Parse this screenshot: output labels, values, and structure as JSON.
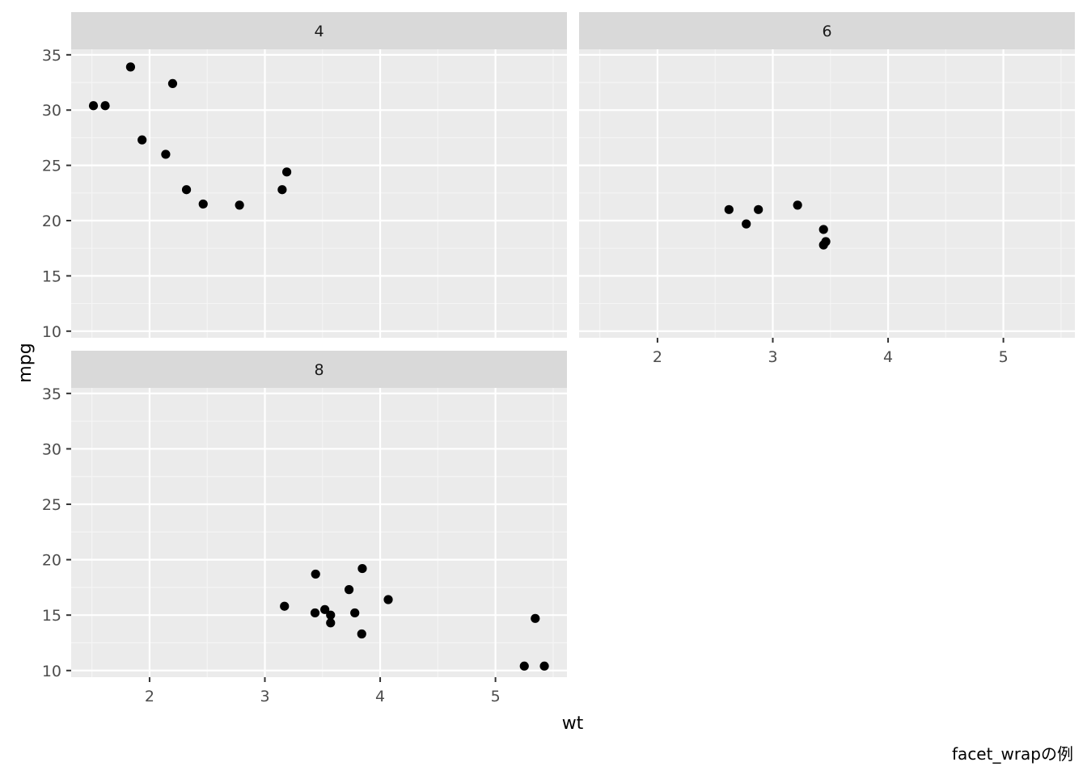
{
  "chart_data": {
    "type": "scatter",
    "xlabel": "wt",
    "ylabel": "mpg",
    "caption": "facet_wrapの例",
    "xlim": [
      1.32,
      5.62
    ],
    "ylim": [
      9.4,
      35.5
    ],
    "x_ticks": [
      2,
      3,
      4,
      5
    ],
    "y_ticks": [
      10,
      15,
      20,
      25,
      30,
      35
    ],
    "grid": true,
    "facets": [
      {
        "label": "4",
        "points": [
          {
            "x": 1.513,
            "y": 30.4
          },
          {
            "x": 1.615,
            "y": 30.4
          },
          {
            "x": 1.835,
            "y": 33.9
          },
          {
            "x": 1.935,
            "y": 27.3
          },
          {
            "x": 2.14,
            "y": 26.0
          },
          {
            "x": 2.2,
            "y": 32.4
          },
          {
            "x": 2.32,
            "y": 22.8
          },
          {
            "x": 2.465,
            "y": 21.5
          },
          {
            "x": 2.78,
            "y": 21.4
          },
          {
            "x": 3.15,
            "y": 22.8
          },
          {
            "x": 3.19,
            "y": 24.4
          }
        ]
      },
      {
        "label": "6",
        "points": [
          {
            "x": 2.62,
            "y": 21.0
          },
          {
            "x": 2.77,
            "y": 19.7
          },
          {
            "x": 2.875,
            "y": 21.0
          },
          {
            "x": 3.215,
            "y": 21.4
          },
          {
            "x": 3.44,
            "y": 19.2
          },
          {
            "x": 3.44,
            "y": 17.8
          },
          {
            "x": 3.46,
            "y": 18.1
          }
        ]
      },
      {
        "label": "8",
        "points": [
          {
            "x": 3.17,
            "y": 15.8
          },
          {
            "x": 3.435,
            "y": 15.2
          },
          {
            "x": 3.44,
            "y": 18.7
          },
          {
            "x": 3.52,
            "y": 15.5
          },
          {
            "x": 3.57,
            "y": 14.3
          },
          {
            "x": 3.57,
            "y": 15.0
          },
          {
            "x": 3.73,
            "y": 17.3
          },
          {
            "x": 3.78,
            "y": 15.2
          },
          {
            "x": 3.84,
            "y": 13.3
          },
          {
            "x": 3.845,
            "y": 19.2
          },
          {
            "x": 4.07,
            "y": 16.4
          },
          {
            "x": 5.25,
            "y": 10.4
          },
          {
            "x": 5.345,
            "y": 14.7
          },
          {
            "x": 5.424,
            "y": 10.4
          }
        ]
      }
    ]
  },
  "colors": {
    "panel_bg": "#ebebeb",
    "strip_bg": "#d9d9d9",
    "grid_major": "#ffffff",
    "grid_minor": "#f5f5f5",
    "point": "#000000",
    "tick_text": "#4d4d4d",
    "strip_text": "#1a1a1a",
    "axis_title": "#000000"
  }
}
